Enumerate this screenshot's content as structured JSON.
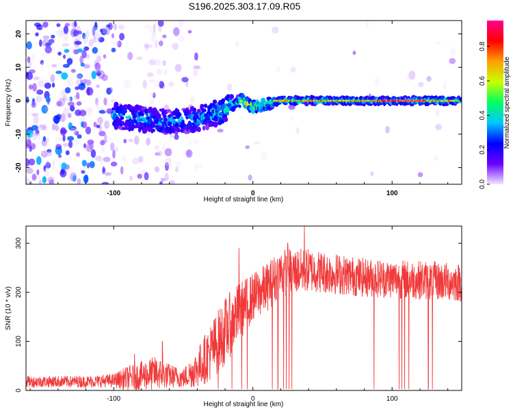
{
  "title": "S196.2025.303.17.09.R05",
  "chart_data": [
    {
      "type": "heatmap",
      "xlabel": "Height of straight line (km)",
      "ylabel": "Frequency (Hz)",
      "xlim": [
        -163,
        150
      ],
      "ylim": [
        -25,
        24
      ],
      "xticks": [
        -100,
        0,
        100
      ],
      "yticks": [
        -20,
        -10,
        0,
        10,
        20
      ],
      "colorbar": {
        "label": "Normalized spectral amplitude",
        "range": [
          0.0,
          0.95
        ],
        "ticks": [
          "0.0",
          "0.2",
          "0.4",
          "0.6",
          "0.8"
        ],
        "colors": [
          "#f2e6ff",
          "#6a00ff",
          "#0000ff",
          "#00c8ff",
          "#00ff60",
          "#c8ff00",
          "#ffa000",
          "#ff0000",
          "#ff0090"
        ]
      },
      "ridge": [
        {
          "x": -100,
          "freq": -4.5
        },
        {
          "x": -80,
          "freq": -5.5
        },
        {
          "x": -60,
          "freq": -6.5
        },
        {
          "x": -40,
          "freq": -5.5
        },
        {
          "x": -25,
          "freq": -3.5
        },
        {
          "x": -15,
          "freq": -1.5
        },
        {
          "x": -8,
          "freq": 0.2
        },
        {
          "x": 0,
          "freq": -2.0
        },
        {
          "x": 10,
          "freq": -0.8
        },
        {
          "x": 20,
          "freq": 0.0
        },
        {
          "x": 60,
          "freq": 0.0
        },
        {
          "x": 100,
          "freq": 0.0
        },
        {
          "x": 150,
          "freq": 0.0
        }
      ]
    },
    {
      "type": "line",
      "xlabel": "Height of straight line (km)",
      "ylabel": "SNR (10 * v/v)",
      "xlim": [
        -163,
        150
      ],
      "ylim": [
        0,
        335
      ],
      "xticks": [
        -100,
        0,
        100
      ],
      "yticks": [
        0,
        100,
        200,
        300
      ],
      "series": [
        {
          "name": "SNR",
          "color": "#f03a3a",
          "envelope": [
            {
              "x": -163,
              "mean": 18,
              "spread": 12
            },
            {
              "x": -120,
              "mean": 18,
              "spread": 12
            },
            {
              "x": -100,
              "mean": 20,
              "spread": 14
            },
            {
              "x": -90,
              "mean": 25,
              "spread": 25
            },
            {
              "x": -70,
              "mean": 35,
              "spread": 35
            },
            {
              "x": -60,
              "mean": 30,
              "spread": 25
            },
            {
              "x": -50,
              "mean": 25,
              "spread": 20
            },
            {
              "x": -40,
              "mean": 45,
              "spread": 40
            },
            {
              "x": -30,
              "mean": 80,
              "spread": 60
            },
            {
              "x": -20,
              "mean": 120,
              "spread": 70
            },
            {
              "x": -10,
              "mean": 160,
              "spread": 60
            },
            {
              "x": 0,
              "mean": 190,
              "spread": 50
            },
            {
              "x": 10,
              "mean": 210,
              "spread": 50
            },
            {
              "x": 20,
              "mean": 240,
              "spread": 50
            },
            {
              "x": 40,
              "mean": 245,
              "spread": 45
            },
            {
              "x": 80,
              "mean": 230,
              "spread": 40
            },
            {
              "x": 120,
              "mean": 225,
              "spread": 40
            },
            {
              "x": 150,
              "mean": 220,
              "spread": 40
            }
          ],
          "peaks": [
            {
              "x": -85,
              "y": 75
            },
            {
              "x": -65,
              "y": 100
            },
            {
              "x": -10,
              "y": 290
            },
            {
              "x": 25,
              "y": 300
            },
            {
              "x": 37,
              "y": 335
            }
          ],
          "dropouts": [
            -25,
            -15,
            -8,
            -4,
            14,
            18,
            22,
            24,
            26,
            28,
            87,
            105,
            107,
            109,
            112,
            126,
            129
          ]
        }
      ]
    }
  ]
}
